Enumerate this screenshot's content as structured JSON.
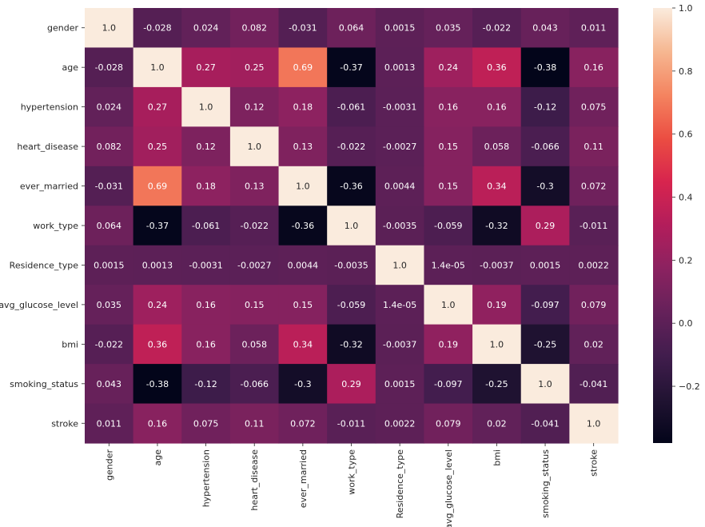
{
  "chart_data": {
    "type": "heatmap",
    "title": "",
    "xlabel": "",
    "ylabel": "",
    "labels": [
      "gender",
      "age",
      "hypertension",
      "heart_disease",
      "ever_married",
      "work_type",
      "Residence_type",
      "avg_glucose_level",
      "bmi",
      "smoking_status",
      "stroke"
    ],
    "values": [
      [
        1.0,
        -0.028,
        0.024,
        0.082,
        -0.031,
        0.064,
        0.0015,
        0.035,
        -0.022,
        0.043,
        0.011
      ],
      [
        -0.028,
        1.0,
        0.27,
        0.25,
        0.69,
        -0.37,
        0.0013,
        0.24,
        0.36,
        -0.38,
        0.16
      ],
      [
        0.024,
        0.27,
        1.0,
        0.12,
        0.18,
        -0.061,
        -0.0031,
        0.16,
        0.16,
        -0.12,
        0.075
      ],
      [
        0.082,
        0.25,
        0.12,
        1.0,
        0.13,
        -0.022,
        -0.0027,
        0.15,
        0.058,
        -0.066,
        0.11
      ],
      [
        -0.031,
        0.69,
        0.18,
        0.13,
        1.0,
        -0.36,
        0.0044,
        0.15,
        0.34,
        -0.3,
        0.072
      ],
      [
        0.064,
        -0.37,
        -0.061,
        -0.022,
        -0.36,
        1.0,
        -0.0035,
        -0.059,
        -0.32,
        0.29,
        -0.011
      ],
      [
        0.0015,
        0.0013,
        -0.0031,
        -0.0027,
        0.0044,
        -0.0035,
        1.0,
        1.4e-05,
        -0.0037,
        0.0015,
        0.0022
      ],
      [
        0.035,
        0.24,
        0.16,
        0.15,
        0.15,
        -0.059,
        1.4e-05,
        1.0,
        0.19,
        -0.097,
        0.079
      ],
      [
        -0.022,
        0.36,
        0.16,
        0.058,
        0.34,
        -0.32,
        -0.0037,
        0.19,
        1.0,
        -0.25,
        0.02
      ],
      [
        0.043,
        -0.38,
        -0.12,
        -0.066,
        -0.3,
        0.29,
        0.0015,
        -0.097,
        -0.25,
        1.0,
        -0.041
      ],
      [
        0.011,
        0.16,
        0.075,
        0.11,
        0.072,
        -0.011,
        0.0022,
        0.079,
        0.02,
        -0.041,
        1.0
      ]
    ],
    "value_labels": [
      [
        "1.0",
        "-0.028",
        "0.024",
        "0.082",
        "-0.031",
        "0.064",
        "0.0015",
        "0.035",
        "-0.022",
        "0.043",
        "0.011"
      ],
      [
        "-0.028",
        "1.0",
        "0.27",
        "0.25",
        "0.69",
        "-0.37",
        "0.0013",
        "0.24",
        "0.36",
        "-0.38",
        "0.16"
      ],
      [
        "0.024",
        "0.27",
        "1.0",
        "0.12",
        "0.18",
        "-0.061",
        "-0.0031",
        "0.16",
        "0.16",
        "-0.12",
        "0.075"
      ],
      [
        "0.082",
        "0.25",
        "0.12",
        "1.0",
        "0.13",
        "-0.022",
        "-0.0027",
        "0.15",
        "0.058",
        "-0.066",
        "0.11"
      ],
      [
        "-0.031",
        "0.69",
        "0.18",
        "0.13",
        "1.0",
        "-0.36",
        "0.0044",
        "0.15",
        "0.34",
        "-0.3",
        "0.072"
      ],
      [
        "0.064",
        "-0.37",
        "-0.061",
        "-0.022",
        "-0.36",
        "1.0",
        "-0.0035",
        "-0.059",
        "-0.32",
        "0.29",
        "-0.011"
      ],
      [
        "0.0015",
        "0.0013",
        "-0.0031",
        "-0.0027",
        "0.0044",
        "-0.0035",
        "1.0",
        "1.4e-05",
        "-0.0037",
        "0.0015",
        "0.0022"
      ],
      [
        "0.035",
        "0.24",
        "0.16",
        "0.15",
        "0.15",
        "-0.059",
        "1.4e-05",
        "1.0",
        "0.19",
        "-0.097",
        "0.079"
      ],
      [
        "-0.022",
        "0.36",
        "0.16",
        "0.058",
        "0.34",
        "-0.32",
        "-0.0037",
        "0.19",
        "1.0",
        "-0.25",
        "0.02"
      ],
      [
        "0.043",
        "-0.38",
        "-0.12",
        "-0.066",
        "-0.3",
        "0.29",
        "0.0015",
        "-0.097",
        "-0.25",
        "1.0",
        "-0.041"
      ],
      [
        "0.011",
        "0.16",
        "0.075",
        "0.11",
        "0.072",
        "-0.011",
        "0.0022",
        "0.079",
        "0.02",
        "-0.041",
        "1.0"
      ]
    ],
    "colormap": "rocket",
    "colorbar": {
      "vmin": -0.38,
      "vmax": 1.0,
      "ticks": [
        -0.2,
        0.0,
        0.2,
        0.4,
        0.6,
        0.8,
        1.0
      ],
      "tick_labels": [
        "−0.2",
        "0.0",
        "0.2",
        "0.4",
        "0.6",
        "0.8",
        "1.0"
      ],
      "placement": "right"
    },
    "grid": false
  }
}
